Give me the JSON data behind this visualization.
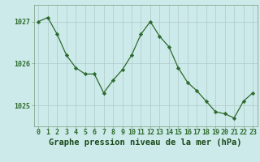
{
  "x": [
    0,
    1,
    2,
    3,
    4,
    5,
    6,
    7,
    8,
    9,
    10,
    11,
    12,
    13,
    14,
    15,
    16,
    17,
    18,
    19,
    20,
    21,
    22,
    23
  ],
  "y": [
    1027.0,
    1027.1,
    1026.7,
    1026.2,
    1025.9,
    1025.75,
    1025.75,
    1025.3,
    1025.6,
    1025.85,
    1026.2,
    1026.7,
    1027.0,
    1026.65,
    1026.4,
    1025.9,
    1025.55,
    1025.35,
    1025.1,
    1024.85,
    1024.8,
    1024.7,
    1025.1,
    1025.3
  ],
  "line_color": "#2d6a2d",
  "marker_color": "#2d6a2d",
  "bg_color": "#cceaea",
  "grid_color": "#b0c8c8",
  "xlabel": "Graphe pression niveau de la mer (hPa)",
  "xlabel_color": "#1a4a1a",
  "xlabel_fontsize": 7.5,
  "yticks": [
    1025,
    1026,
    1027
  ],
  "ylim": [
    1024.5,
    1027.4
  ],
  "xlim": [
    -0.5,
    23.5
  ],
  "tick_label_color": "#2d6a2d",
  "tick_fontsize": 6.0,
  "spine_color": "#7a9a7a"
}
